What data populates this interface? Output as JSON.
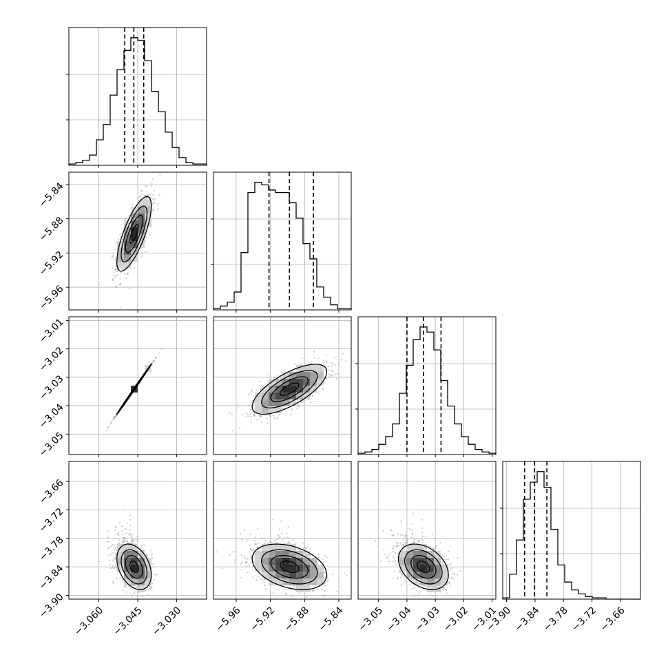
{
  "chart_data": {
    "type": "corner",
    "title": "",
    "parameters": [
      {
        "label": "",
        "range": [
          -3.0715,
          -3.0185
        ],
        "ticks": [
          {
            "value": -3.06,
            "label": "−3.060"
          },
          {
            "value": -3.045,
            "label": "−3.045"
          },
          {
            "value": -3.03,
            "label": "−3.030"
          }
        ],
        "quantiles": [
          -3.05,
          -3.0465,
          -3.0427
        ]
      },
      {
        "label": "",
        "range": [
          -5.9865,
          -5.8255
        ],
        "ticks": [
          {
            "value": -5.96,
            "label": "−5.96"
          },
          {
            "value": -5.92,
            "label": "−5.92"
          },
          {
            "value": -5.88,
            "label": "−5.88"
          },
          {
            "value": -5.84,
            "label": "−5.84"
          }
        ],
        "quantiles": [
          -5.9216,
          -5.8977,
          -5.8697
        ]
      },
      {
        "label": "",
        "range": [
          -3.0572,
          -3.0087
        ],
        "ticks": [
          {
            "value": -3.05,
            "label": "−3.05"
          },
          {
            "value": -3.04,
            "label": "−3.04"
          },
          {
            "value": -3.03,
            "label": "−3.03"
          },
          {
            "value": -3.02,
            "label": "−3.02"
          },
          {
            "value": -3.01,
            "label": "−3.01"
          }
        ],
        "quantiles": [
          -3.04,
          -3.0342,
          -3.028
        ]
      },
      {
        "label": "",
        "range": [
          -3.908,
          -3.618
        ],
        "ticks": [
          {
            "value": -3.9,
            "label": "−3.90"
          },
          {
            "value": -3.84,
            "label": "−3.84"
          },
          {
            "value": -3.78,
            "label": "−3.78"
          },
          {
            "value": -3.72,
            "label": "−3.72"
          },
          {
            "value": -3.66,
            "label": "−3.66"
          }
        ],
        "quantiles": [
          -3.862,
          -3.841,
          -3.815
        ]
      }
    ],
    "histograms": [
      {
        "param": 0,
        "counts": [
          1,
          2,
          4,
          8,
          20,
          32,
          55,
          75,
          90,
          100,
          98,
          82,
          58,
          42,
          26,
          14,
          6,
          2,
          1,
          1
        ]
      },
      {
        "param": 1,
        "counts": [
          1,
          3,
          6,
          14,
          45,
          92,
          100,
          98,
          94,
          92,
          92,
          84,
          72,
          52,
          40,
          18,
          10,
          4,
          1,
          1
        ]
      },
      {
        "param": 2,
        "counts": [
          1,
          2,
          4,
          8,
          14,
          24,
          48,
          70,
          90,
          100,
          96,
          82,
          58,
          38,
          24,
          14,
          8,
          4,
          2,
          1
        ]
      },
      {
        "param": 3,
        "counts": [
          1,
          19,
          45,
          76,
          89,
          97,
          85,
          53,
          26,
          13,
          7,
          4,
          2,
          1,
          1,
          0,
          0,
          0,
          0,
          0
        ]
      }
    ],
    "pairs": [
      {
        "x": 1,
        "y": 0,
        "mean": [
          -3.0464,
          -5.8977
        ],
        "sd": [
          0.00331,
          0.0218
        ],
        "rho": 0.75
      },
      {
        "x": 2,
        "y": 0,
        "mean": [
          -3.0464,
          -3.0342
        ],
        "sd": [
          0.00331,
          0.0044
        ],
        "rho": 0.999
      },
      {
        "x": 2,
        "y": 1,
        "mean": [
          -5.8977,
          -3.0342
        ],
        "sd": [
          0.0218,
          0.0044
        ],
        "rho": 0.7
      },
      {
        "x": 3,
        "y": 0,
        "mean": [
          -3.0464,
          -3.84
        ],
        "sd": [
          0.00331,
          0.024
        ],
        "rho": -0.35
      },
      {
        "x": 3,
        "y": 1,
        "mean": [
          -5.8977,
          -3.84
        ],
        "sd": [
          0.0218,
          0.024
        ],
        "rho": -0.35
      },
      {
        "x": 3,
        "y": 2,
        "mean": [
          -3.0342,
          -3.84
        ],
        "sd": [
          0.0044,
          0.024
        ],
        "rho": -0.35
      }
    ],
    "contour_levels_sigma": [
      0.5,
      1.0,
      1.5,
      2.0
    ],
    "grid": true,
    "legend": "none",
    "colors": {
      "points": "#8c8c8c",
      "density": "#000000",
      "lines": "#000000",
      "grid": "#b0b0b0"
    }
  }
}
